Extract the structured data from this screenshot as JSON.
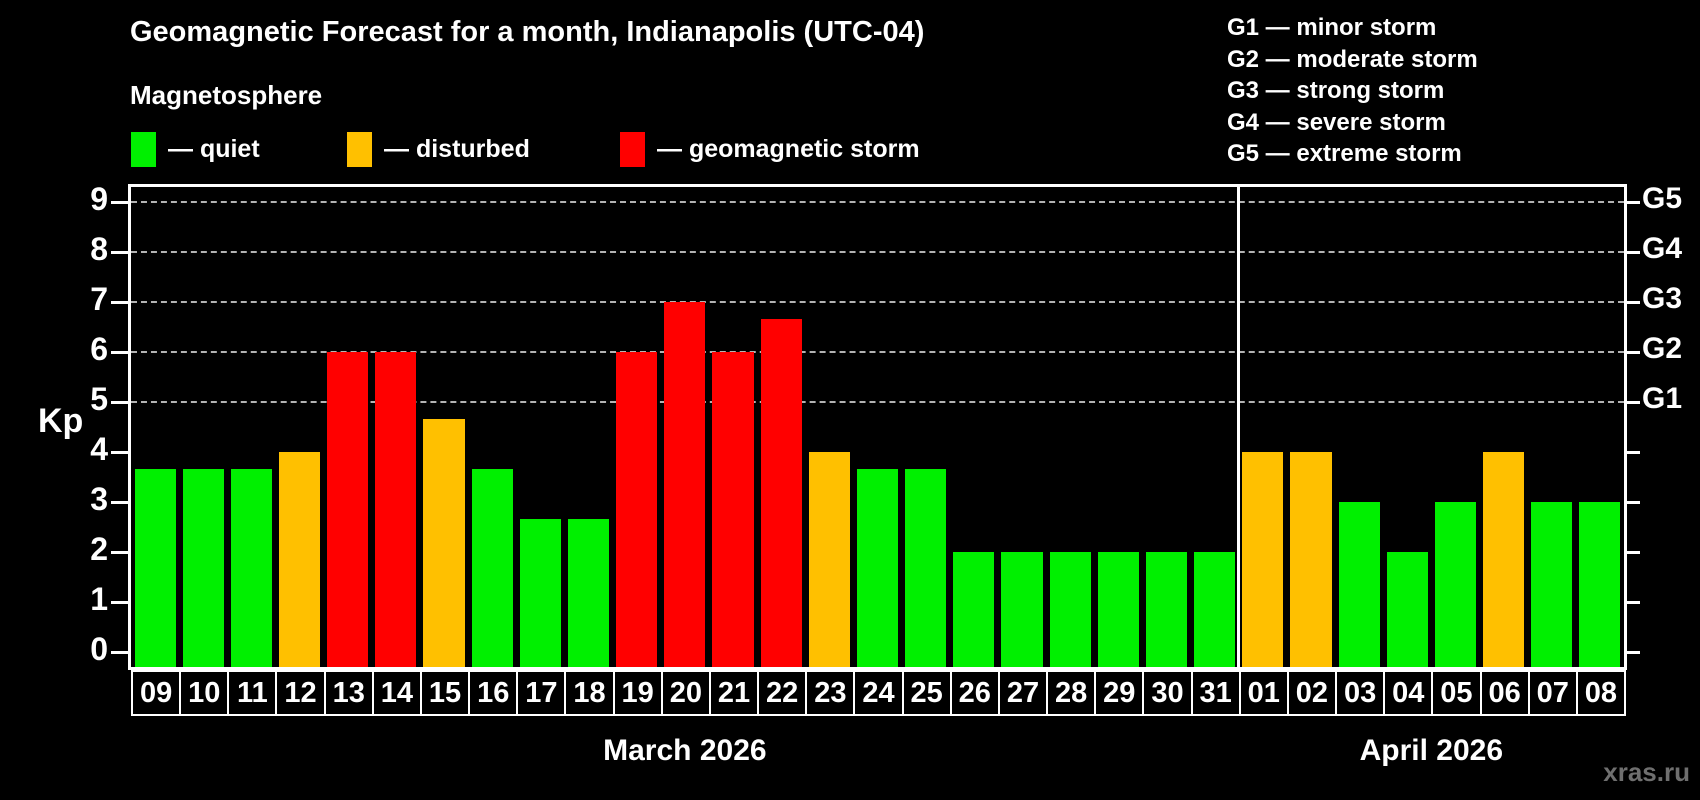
{
  "header": {
    "title": "Geomagnetic Forecast for a month, Indianapolis (UTC-04)",
    "subtitle": "Magnetosphere"
  },
  "legend": {
    "items": [
      {
        "state": "quiet",
        "label": "— quiet"
      },
      {
        "state": "disturbed",
        "label": "— disturbed"
      },
      {
        "state": "storm",
        "label": "— geomagnetic storm"
      }
    ]
  },
  "g_scale_legend": {
    "lines": [
      "G1 — minor storm",
      "G2 — moderate storm",
      "G3 — strong storm",
      "G4 — severe storm",
      "G5 — extreme storm"
    ]
  },
  "colors": {
    "quiet": "#00f000",
    "disturbed": "#ffc000",
    "storm": "#ff0000",
    "grid": "#b3b3b3",
    "axis": "#ffffff",
    "watermark": "#6f6f6f"
  },
  "watermark": "xras.ru",
  "chart_data": {
    "type": "bar",
    "title": "Geomagnetic Forecast for a month, Indianapolis (UTC-04)",
    "ylabel": "Kp",
    "ylim": [
      0,
      9
    ],
    "yticks": [
      0,
      1,
      2,
      3,
      4,
      5,
      6,
      7,
      8,
      9
    ],
    "gridline_values": [
      5,
      6,
      7,
      8,
      9
    ],
    "grid": "dashed, Kp 5-9 only",
    "legend_position": "top",
    "right_axis_labels": [
      {
        "label": "G1",
        "kp": 5
      },
      {
        "label": "G2",
        "kp": 6
      },
      {
        "label": "G3",
        "kp": 7
      },
      {
        "label": "G4",
        "kp": 8
      },
      {
        "label": "G5",
        "kp": 9
      }
    ],
    "months": [
      {
        "label": "March 2026",
        "days": 23
      },
      {
        "label": "April 2026",
        "days": 8
      }
    ],
    "bars": [
      {
        "day": "09",
        "kp": 3.67,
        "state": "quiet"
      },
      {
        "day": "10",
        "kp": 3.67,
        "state": "quiet"
      },
      {
        "day": "11",
        "kp": 3.67,
        "state": "quiet"
      },
      {
        "day": "12",
        "kp": 4.0,
        "state": "disturbed"
      },
      {
        "day": "13",
        "kp": 6.0,
        "state": "storm"
      },
      {
        "day": "14",
        "kp": 6.0,
        "state": "storm"
      },
      {
        "day": "15",
        "kp": 4.67,
        "state": "disturbed"
      },
      {
        "day": "16",
        "kp": 3.67,
        "state": "quiet"
      },
      {
        "day": "17",
        "kp": 2.67,
        "state": "quiet"
      },
      {
        "day": "18",
        "kp": 2.67,
        "state": "quiet"
      },
      {
        "day": "19",
        "kp": 6.0,
        "state": "storm"
      },
      {
        "day": "20",
        "kp": 7.0,
        "state": "storm"
      },
      {
        "day": "21",
        "kp": 6.0,
        "state": "storm"
      },
      {
        "day": "22",
        "kp": 6.67,
        "state": "storm"
      },
      {
        "day": "23",
        "kp": 4.0,
        "state": "disturbed"
      },
      {
        "day": "24",
        "kp": 3.67,
        "state": "quiet"
      },
      {
        "day": "25",
        "kp": 3.67,
        "state": "quiet"
      },
      {
        "day": "26",
        "kp": 2.0,
        "state": "quiet"
      },
      {
        "day": "27",
        "kp": 2.0,
        "state": "quiet"
      },
      {
        "day": "28",
        "kp": 2.0,
        "state": "quiet"
      },
      {
        "day": "29",
        "kp": 2.0,
        "state": "quiet"
      },
      {
        "day": "30",
        "kp": 2.0,
        "state": "quiet"
      },
      {
        "day": "31",
        "kp": 2.0,
        "state": "quiet"
      },
      {
        "day": "01",
        "kp": 4.0,
        "state": "disturbed"
      },
      {
        "day": "02",
        "kp": 4.0,
        "state": "disturbed"
      },
      {
        "day": "03",
        "kp": 3.0,
        "state": "quiet"
      },
      {
        "day": "04",
        "kp": 2.0,
        "state": "quiet"
      },
      {
        "day": "05",
        "kp": 3.0,
        "state": "quiet"
      },
      {
        "day": "06",
        "kp": 4.0,
        "state": "disturbed"
      },
      {
        "day": "07",
        "kp": 3.0,
        "state": "quiet"
      },
      {
        "day": "08",
        "kp": 3.0,
        "state": "quiet"
      }
    ]
  }
}
